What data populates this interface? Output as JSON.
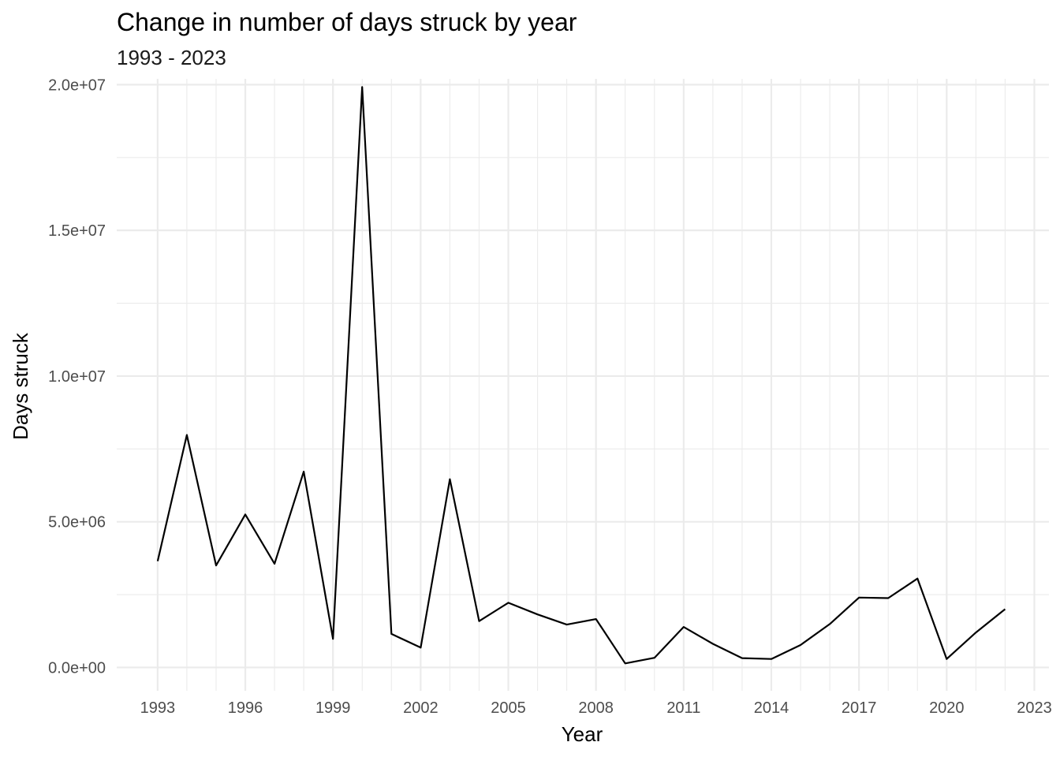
{
  "chart_data": {
    "type": "line",
    "title": "Change in number of days struck by year",
    "subtitle": "1993 - 2023",
    "xlabel": "Year",
    "ylabel": "Days struck",
    "xlim": [
      1991.6,
      2023.5
    ],
    "ylim": [
      -800000,
      20200000
    ],
    "x_ticks": [
      1993,
      1996,
      1999,
      2002,
      2005,
      2008,
      2011,
      2014,
      2017,
      2020,
      2023
    ],
    "x_tick_labels": [
      "1993",
      "1996",
      "1999",
      "2002",
      "2005",
      "2008",
      "2011",
      "2014",
      "2017",
      "2020",
      "2023"
    ],
    "y_ticks": [
      0,
      5000000,
      10000000,
      15000000,
      20000000
    ],
    "y_tick_labels": [
      "0.0e+00",
      "5.0e+06",
      "1.0e+07",
      "1.5e+07",
      "2.0e+07"
    ],
    "y_minor_ticks": [
      2500000,
      7500000,
      12500000,
      17500000
    ],
    "grid": true,
    "legend": "none",
    "series": [
      {
        "color": "#000000",
        "x": [
          1993,
          1994,
          1995,
          1996,
          1997,
          1998,
          1999,
          2000,
          2001,
          2002,
          2003,
          2004,
          2005,
          2006,
          2007,
          2008,
          2009,
          2010,
          2011,
          2012,
          2013,
          2014,
          2015,
          2016,
          2017,
          2018,
          2019,
          2020,
          2021,
          2022
        ],
        "values": [
          3650000,
          7980000,
          3500000,
          5250000,
          3560000,
          6720000,
          980000,
          19920000,
          1150000,
          680000,
          6460000,
          1590000,
          2220000,
          1820000,
          1470000,
          1660000,
          140000,
          330000,
          1390000,
          810000,
          320000,
          290000,
          770000,
          1490000,
          2400000,
          2380000,
          3050000,
          290000,
          1200000,
          2000000
        ]
      }
    ]
  }
}
